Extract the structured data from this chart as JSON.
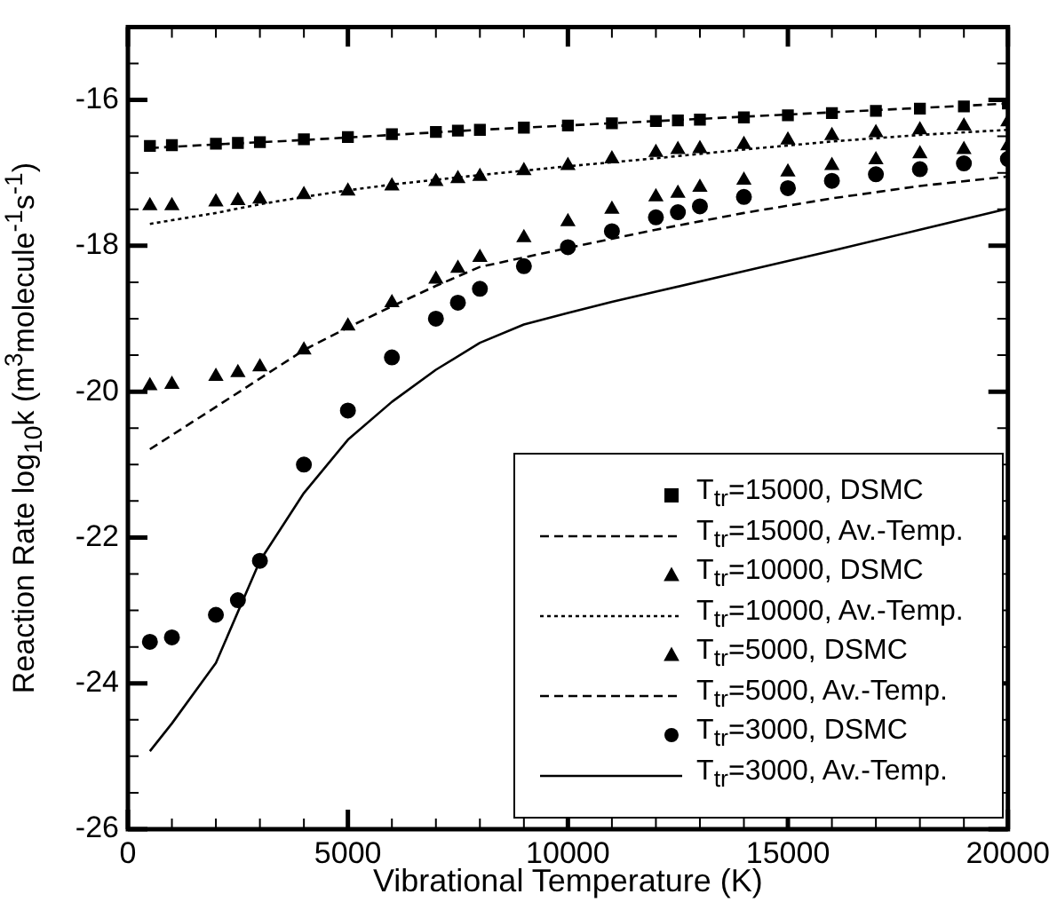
{
  "chart_data": {
    "type": "scatter",
    "xlabel": "Vibrational Temperature (K)",
    "ylabel": "Reaction Rate log$_{10}$k (m$^{3}$molecule$^{-1}$s$^{-1}$)",
    "xlim": [
      0,
      20000
    ],
    "ylim": [
      -26,
      -15
    ],
    "xticks": [
      0,
      {
        "value": 1000,
        "label": null
      },
      {
        "value": 2000,
        "label": null
      },
      {
        "value": 3000,
        "label": null
      },
      {
        "value": 4000,
        "label": null
      },
      5000,
      {
        "value": 6000,
        "label": null
      },
      {
        "value": 7000,
        "label": null
      },
      {
        "value": 8000,
        "label": null
      },
      {
        "value": 9000,
        "label": null
      },
      10000,
      {
        "value": 11000,
        "label": null
      },
      {
        "value": 12000,
        "label": null
      },
      {
        "value": 13000,
        "label": null
      },
      {
        "value": 14000,
        "label": null
      },
      15000,
      {
        "value": 16000,
        "label": null
      },
      {
        "value": 17000,
        "label": null
      },
      {
        "value": 18000,
        "label": null
      },
      {
        "value": 19000,
        "label": null
      },
      20000
    ],
    "yticks": [
      -26,
      {
        "value": -25.5,
        "label": null
      },
      {
        "value": -25,
        "label": null
      },
      {
        "value": -24.5,
        "label": null
      },
      -24,
      {
        "value": -23.5,
        "label": null
      },
      {
        "value": -23,
        "label": null
      },
      {
        "value": -22.5,
        "label": null
      },
      -22,
      {
        "value": -21.5,
        "label": null
      },
      {
        "value": -21,
        "label": null
      },
      {
        "value": -20.5,
        "label": null
      },
      -20,
      {
        "value": -19.5,
        "label": null
      },
      {
        "value": -19,
        "label": null
      },
      {
        "value": -18.5,
        "label": null
      },
      -18,
      {
        "value": -17.5,
        "label": null
      },
      {
        "value": -17,
        "label": null
      },
      {
        "value": -16.5,
        "label": null
      },
      -16,
      {
        "value": -15.5,
        "label": null
      },
      {
        "value": -15,
        "label": null
      }
    ],
    "grid": false,
    "legend": "bottom right",
    "series": [
      {
        "name": "T$_{tr}$=15000, DSMC",
        "type": "scatter",
        "marker": "square",
        "color": "#000000",
        "x": [
          500,
          1000,
          2000,
          2500,
          3000,
          4000,
          5000,
          6000,
          7000,
          7500,
          8000,
          9000,
          10000,
          11000,
          12000,
          12500,
          13000,
          14000,
          15000,
          16000,
          17000,
          18000,
          19000,
          20000
        ],
        "values": [
          -16.63,
          -16.62,
          -16.6,
          -16.59,
          -16.58,
          -16.54,
          -16.51,
          -16.47,
          -16.44,
          -16.42,
          -16.41,
          -16.38,
          -16.35,
          -16.32,
          -16.29,
          -16.28,
          -16.27,
          -16.24,
          -16.21,
          -16.18,
          -16.15,
          -16.12,
          -16.09,
          -16.05
        ]
      },
      {
        "name": "T$_{tr}$=15000, Av.-Temp.",
        "type": "line",
        "line_style": "dashed",
        "color": "#000000",
        "x": [
          500,
          2000,
          4000,
          6000,
          8000,
          10000,
          12000,
          14000,
          16000,
          18000,
          20000
        ],
        "values": [
          -16.66,
          -16.61,
          -16.55,
          -16.48,
          -16.41,
          -16.35,
          -16.29,
          -16.23,
          -16.17,
          -16.11,
          -16.05
        ]
      },
      {
        "name": "T$_{tr}$=10000, DSMC",
        "type": "scatter",
        "marker": "triangle",
        "color": "#000000",
        "x": [
          500,
          1000,
          2000,
          2500,
          3000,
          4000,
          5000,
          6000,
          7000,
          7500,
          8000,
          9000,
          10000,
          11000,
          12000,
          12500,
          13000,
          14000,
          15000,
          16000,
          17000,
          18000,
          19000,
          20000
        ],
        "values": [
          -17.45,
          -17.45,
          -17.4,
          -17.38,
          -17.36,
          -17.3,
          -17.25,
          -17.18,
          -17.12,
          -17.08,
          -17.05,
          -16.97,
          -16.9,
          -16.81,
          -16.72,
          -16.68,
          -16.67,
          -16.61,
          -16.55,
          -16.49,
          -16.45,
          -16.41,
          -16.36,
          -16.3
        ]
      },
      {
        "name": "T$_{tr}$=10000, Av.-Temp.",
        "type": "line",
        "line_style": "dotted",
        "color": "#000000",
        "x": [
          500,
          1000,
          2000,
          3000,
          4000,
          5000,
          6000,
          8000,
          10000,
          12000,
          14000,
          16000,
          18000,
          20000
        ],
        "values": [
          -17.7,
          -17.65,
          -17.55,
          -17.43,
          -17.33,
          -17.24,
          -17.16,
          -17.03,
          -16.91,
          -16.8,
          -16.68,
          -16.57,
          -16.48,
          -16.41
        ]
      },
      {
        "name": "T$_{tr}$=5000, DSMC",
        "type": "scatter",
        "marker": "triangle",
        "color": "#000000",
        "x": [
          500,
          1000,
          2000,
          2500,
          3000,
          4000,
          5000,
          6000,
          7000,
          7500,
          8000,
          9000,
          10000,
          11000,
          12000,
          12500,
          13000,
          14000,
          15000,
          16000,
          17000,
          18000,
          19000,
          20000
        ],
        "values": [
          -19.92,
          -19.9,
          -19.79,
          -19.74,
          -19.66,
          -19.43,
          -19.1,
          -18.78,
          -18.46,
          -18.31,
          -18.16,
          -17.89,
          -17.67,
          -17.5,
          -17.33,
          -17.28,
          -17.2,
          -17.1,
          -16.99,
          -16.9,
          -16.82,
          -16.74,
          -16.68,
          -16.63
        ]
      },
      {
        "name": "T$_{tr}$=5000, Av.-Temp.",
        "type": "line",
        "line_style": "dashed",
        "color": "#000000",
        "x": [
          500,
          2000,
          3000,
          4000,
          5000,
          6000,
          7000,
          8000,
          10000,
          12000,
          14000,
          16000,
          18000,
          20000
        ],
        "values": [
          -20.79,
          -20.21,
          -19.82,
          -19.43,
          -19.12,
          -18.83,
          -18.55,
          -18.29,
          -18.03,
          -17.78,
          -17.55,
          -17.35,
          -17.18,
          -17.05
        ]
      },
      {
        "name": "T$_{tr}$=3000, DSMC",
        "type": "scatter",
        "marker": "circle",
        "color": "#000000",
        "x": [
          500,
          1000,
          2000,
          2500,
          3000,
          4000,
          5000,
          6000,
          7000,
          7500,
          8000,
          9000,
          10000,
          11000,
          12000,
          12500,
          13000,
          14000,
          15000,
          16000,
          17000,
          18000,
          19000,
          20000
        ],
        "values": [
          -23.43,
          -23.37,
          -23.06,
          -22.86,
          -22.32,
          -21.0,
          -20.26,
          -19.53,
          -19.0,
          -18.78,
          -18.59,
          -18.28,
          -18.02,
          -17.8,
          -17.61,
          -17.54,
          -17.46,
          -17.33,
          -17.21,
          -17.11,
          -17.02,
          -16.95,
          -16.87,
          -16.81
        ]
      },
      {
        "name": "T$_{tr}$=3000, Av.-Temp.",
        "type": "line",
        "line_style": "solid",
        "color": "#000000",
        "x": [
          500,
          1000,
          2000,
          3000,
          4000,
          5000,
          6000,
          7000,
          8000,
          9000,
          10000,
          11000,
          12000,
          14000,
          16000,
          18000,
          20000
        ],
        "values": [
          -24.93,
          -24.55,
          -23.72,
          -22.32,
          -21.39,
          -20.66,
          -20.14,
          -19.7,
          -19.33,
          -19.08,
          -18.92,
          -18.77,
          -18.63,
          -18.35,
          -18.07,
          -17.78,
          -17.49
        ]
      }
    ]
  }
}
